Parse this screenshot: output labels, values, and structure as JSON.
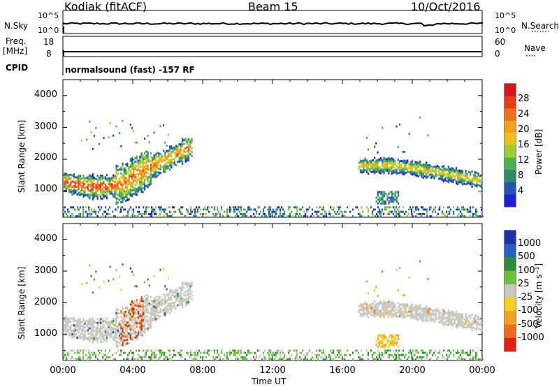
{
  "header": {
    "station": "Kodiak (fitACF)",
    "beam": "Beam 15",
    "date": "10/Oct/2016"
  },
  "aux_panels": {
    "nsky_label": "N.Sky",
    "nsky_ticks": [
      "10^5",
      "10^0"
    ],
    "nsearch_label": "N.Search",
    "nsearch_ticks": [
      "10^5",
      "10^0"
    ],
    "freq_label_1": "Freq.",
    "freq_label_2": "[MHz]",
    "freq_ticks": [
      "18",
      "8"
    ],
    "nave_label": "Nave",
    "nave_ticks": [
      "60",
      "0"
    ],
    "cpid_label": "CPID",
    "cpid_text": "normalsound (fast) -157 RF"
  },
  "chart_data": [
    {
      "type": "heatmap",
      "name": "power",
      "ylabel": "Slant Range [km]",
      "xlabel": "",
      "xlim": [
        "00:00",
        "24:00"
      ],
      "ylim": [
        180,
        4500
      ],
      "yticks": [
        "4000",
        "3000",
        "2000",
        "1000"
      ],
      "colorbar": {
        "label": "Power [dB]",
        "ticks": [
          "28",
          "24",
          "20",
          "16",
          "12",
          "8",
          "4"
        ],
        "colors": [
          "#1f1fd8",
          "#2255b8",
          "#2f8a6a",
          "#4caf50",
          "#9acd32",
          "#e8c51a",
          "#f2a11a",
          "#f0701a",
          "#e63a1a",
          "#d81818"
        ]
      }
    },
    {
      "type": "heatmap",
      "name": "velocity",
      "ylabel": "Slant Range [km]",
      "xlabel": "Time UT",
      "xticks": [
        "00:00",
        "04:00",
        "08:00",
        "12:00",
        "16:00",
        "20:00",
        "00:00"
      ],
      "ylim": [
        180,
        4500
      ],
      "yticks": [
        "4000",
        "3000",
        "2000",
        "1000"
      ],
      "colorbar": {
        "label": "Velocity [m s⁻¹]",
        "ticks": [
          "1000",
          "500",
          "100",
          "25",
          "-25",
          "-100",
          "-500",
          "-1000"
        ],
        "colors": [
          "#2030a8",
          "#2a5fc0",
          "#2f8a3a",
          "#6cc040",
          "#c8c8c0",
          "#f5d020",
          "#f5a020",
          "#f06a18",
          "#e02010"
        ]
      }
    }
  ],
  "colors": {
    "ground_scatter": "#c8c8c0"
  }
}
